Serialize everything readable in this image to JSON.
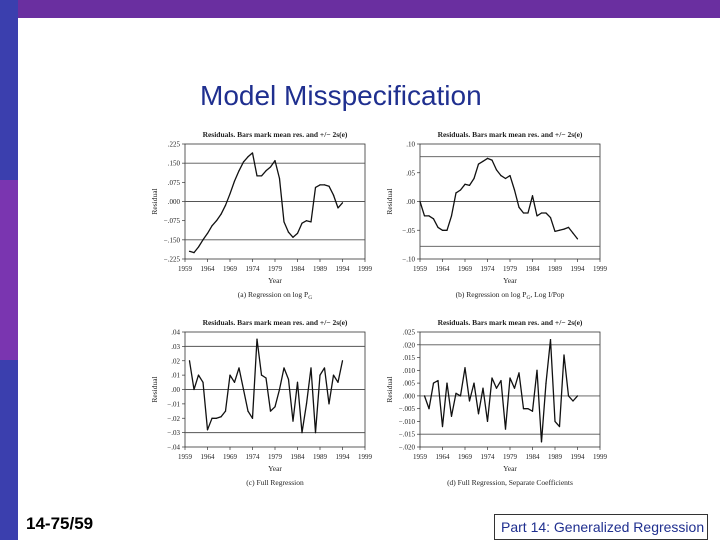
{
  "slide": {
    "title": "Model Misspecification",
    "number": "14-75/59",
    "footer": "Part 14: Generalized Regression",
    "colors": {
      "top_bar": "#6a2fa0",
      "left_bar_segments": [
        "#3b3fae",
        "#7a35b0",
        "#3b3fae"
      ],
      "title": "#1f2f8f"
    }
  },
  "chart_data": [
    {
      "type": "line",
      "title": "Residuals. Bars mark mean res. and +/− 2s(e)",
      "caption": "(a) Regression on log P",
      "caption_sub": "G",
      "xlabel": "Year",
      "ylabel": "Residual",
      "xticks": [
        "1959",
        "1964",
        "1969",
        "1974",
        "1979",
        "1984",
        "1989",
        "1994",
        "1999"
      ],
      "xlim": [
        1959,
        1999
      ],
      "yticks": [
        ".225",
        ".150",
        ".075",
        ".000",
        "−.075",
        "−.150",
        "−.225"
      ],
      "ylim": [
        -0.225,
        0.225
      ],
      "bands": [
        0.0,
        0.15,
        -0.15
      ],
      "x": [
        1960,
        1961,
        1962,
        1963,
        1964,
        1965,
        1966,
        1967,
        1968,
        1969,
        1970,
        1971,
        1972,
        1973,
        1974,
        1975,
        1976,
        1977,
        1978,
        1979,
        1980,
        1981,
        1982,
        1983,
        1984,
        1985,
        1986,
        1987,
        1988,
        1989,
        1990,
        1991,
        1992,
        1993,
        1994
      ],
      "values": [
        -0.195,
        -0.2,
        -0.178,
        -0.15,
        -0.125,
        -0.095,
        -0.075,
        -0.05,
        -0.015,
        0.03,
        0.08,
        0.12,
        0.155,
        0.175,
        0.19,
        0.1,
        0.1,
        0.12,
        0.135,
        0.16,
        0.09,
        -0.08,
        -0.12,
        -0.14,
        -0.125,
        -0.085,
        -0.075,
        -0.08,
        0.055,
        0.065,
        0.065,
        0.06,
        0.025,
        -0.025,
        -0.005
      ]
    },
    {
      "type": "line",
      "title": "Residuals. Bars mark mean res. and +/− 2s(e)",
      "caption": "(b) Regression on log P",
      "caption_sub": "G",
      "caption_tail": ", Log I/Pop",
      "xlabel": "Year",
      "ylabel": "Residual",
      "xticks": [
        "1959",
        "1964",
        "1969",
        "1974",
        "1979",
        "1984",
        "1989",
        "1994",
        "1999"
      ],
      "xlim": [
        1959,
        1999
      ],
      "yticks": [
        ".10",
        ".05",
        ".00",
        "−.05",
        "−.10"
      ],
      "ylim": [
        -0.1,
        0.1
      ],
      "bands": [
        0.0,
        0.078,
        -0.078
      ],
      "x": [
        1959,
        1960,
        1961,
        1962,
        1963,
        1964,
        1965,
        1966,
        1967,
        1968,
        1969,
        1970,
        1971,
        1972,
        1973,
        1974,
        1975,
        1976,
        1977,
        1978,
        1979,
        1980,
        1981,
        1982,
        1983,
        1984,
        1985,
        1986,
        1987,
        1988,
        1989,
        1990,
        1991,
        1992,
        1993,
        1994
      ],
      "values": [
        0.0,
        -0.025,
        -0.025,
        -0.03,
        -0.045,
        -0.05,
        -0.05,
        -0.025,
        0.015,
        0.02,
        0.03,
        0.028,
        0.04,
        0.065,
        0.07,
        0.075,
        0.072,
        0.055,
        0.045,
        0.04,
        0.045,
        0.02,
        -0.01,
        -0.02,
        -0.02,
        0.01,
        -0.025,
        -0.02,
        -0.02,
        -0.028,
        -0.052,
        -0.05,
        -0.048,
        -0.045,
        -0.055,
        -0.065
      ]
    },
    {
      "type": "line",
      "title": "Residuals. Bars mark mean res. and +/− 2s(e)",
      "caption": "(c) Full Regression",
      "xlabel": "Year",
      "ylabel": "Residual",
      "xticks": [
        "1959",
        "1964",
        "1969",
        "1974",
        "1979",
        "1984",
        "1989",
        "1994",
        "1999"
      ],
      "xlim": [
        1959,
        1999
      ],
      "yticks": [
        ".04",
        ".03",
        ".02",
        ".01",
        ".00",
        "−.01",
        "−.02",
        "−.03",
        "−.04"
      ],
      "ylim": [
        -0.04,
        0.04
      ],
      "bands": [
        0.0,
        0.03,
        -0.03
      ],
      "x": [
        1960,
        1961,
        1962,
        1963,
        1964,
        1965,
        1966,
        1967,
        1968,
        1969,
        1970,
        1971,
        1972,
        1973,
        1974,
        1975,
        1976,
        1977,
        1978,
        1979,
        1980,
        1981,
        1982,
        1983,
        1984,
        1985,
        1986,
        1987,
        1988,
        1989,
        1990,
        1991,
        1992,
        1993,
        1994
      ],
      "values": [
        0.02,
        0.0,
        0.01,
        0.005,
        -0.028,
        -0.02,
        -0.02,
        -0.019,
        -0.015,
        0.01,
        0.005,
        0.015,
        0.0,
        -0.015,
        -0.02,
        0.035,
        0.01,
        0.008,
        -0.015,
        -0.012,
        0.0,
        0.015,
        0.007,
        -0.022,
        0.005,
        -0.03,
        -0.01,
        0.015,
        -0.03,
        0.01,
        0.015,
        -0.01,
        0.01,
        0.005,
        0.02
      ]
    },
    {
      "type": "line",
      "title": "Residuals. Bars mark mean res. and +/− 2s(e)",
      "caption": "(d) Full Regression, Separate Coefficients",
      "xlabel": "Year",
      "ylabel": "Residual",
      "xticks": [
        "1959",
        "1964",
        "1969",
        "1974",
        "1979",
        "1984",
        "1989",
        "1994",
        "1999"
      ],
      "xlim": [
        1959,
        1999
      ],
      "yticks": [
        ".025",
        ".020",
        ".015",
        ".010",
        ".005",
        ".000",
        "−.005",
        "−.010",
        "−.015",
        "−.020"
      ],
      "ylim": [
        -0.02,
        0.025
      ],
      "bands": [
        0.0,
        0.02,
        -0.015
      ],
      "x": [
        1960,
        1961,
        1962,
        1963,
        1964,
        1965,
        1966,
        1967,
        1968,
        1969,
        1970,
        1971,
        1972,
        1973,
        1974,
        1975,
        1976,
        1977,
        1978,
        1979,
        1980,
        1981,
        1982,
        1983,
        1984,
        1985,
        1986,
        1987,
        1988,
        1989,
        1990,
        1991,
        1992,
        1993,
        1994
      ],
      "values": [
        0.0,
        -0.005,
        0.005,
        0.006,
        -0.012,
        0.005,
        -0.008,
        0.001,
        0.0,
        0.011,
        -0.002,
        0.005,
        -0.007,
        0.003,
        -0.01,
        0.007,
        0.003,
        0.006,
        -0.013,
        0.007,
        0.003,
        0.009,
        -0.005,
        -0.005,
        -0.006,
        0.01,
        -0.018,
        0.005,
        0.022,
        -0.01,
        -0.012,
        0.016,
        0.0,
        -0.002,
        0.0
      ]
    }
  ]
}
